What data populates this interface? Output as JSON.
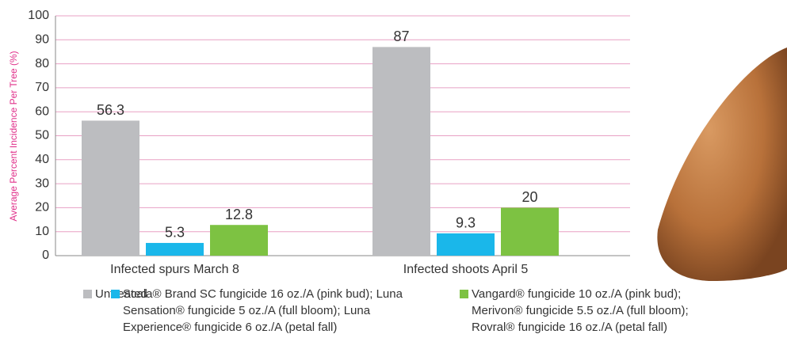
{
  "chart_data": {
    "type": "bar",
    "y_label": "Average Percent Incidence Per Tree (%)",
    "categories": [
      "Infected spurs March 8",
      "Infected shoots April 5"
    ],
    "series": [
      {
        "name": "Untreated",
        "color": "#bcbdc0",
        "values": [
          56.3,
          87
        ]
      },
      {
        "name": "Scala® Brand SC fungicide 16 oz./A (pink bud); Luna Sensation® fungicide 5 oz./A (full bloom); Luna Experience® fungicide 6 oz./A (petal fall)",
        "color": "#1ab7ea",
        "values": [
          5.3,
          9.3
        ]
      },
      {
        "name": "Vangard® fungicide 10 oz./A (pink bud); Merivon® fungicide 5.5 oz./A (full bloom); Rovral® fungicide 16 oz./A (petal fall)",
        "color": "#7dc242",
        "values": [
          12.8,
          20
        ]
      }
    ],
    "ylim": [
      0,
      100
    ],
    "yticks": [
      0,
      10,
      20,
      30,
      40,
      50,
      60,
      70,
      80,
      90,
      100
    ],
    "grid": true,
    "grid_color": "#e8a0c4"
  }
}
